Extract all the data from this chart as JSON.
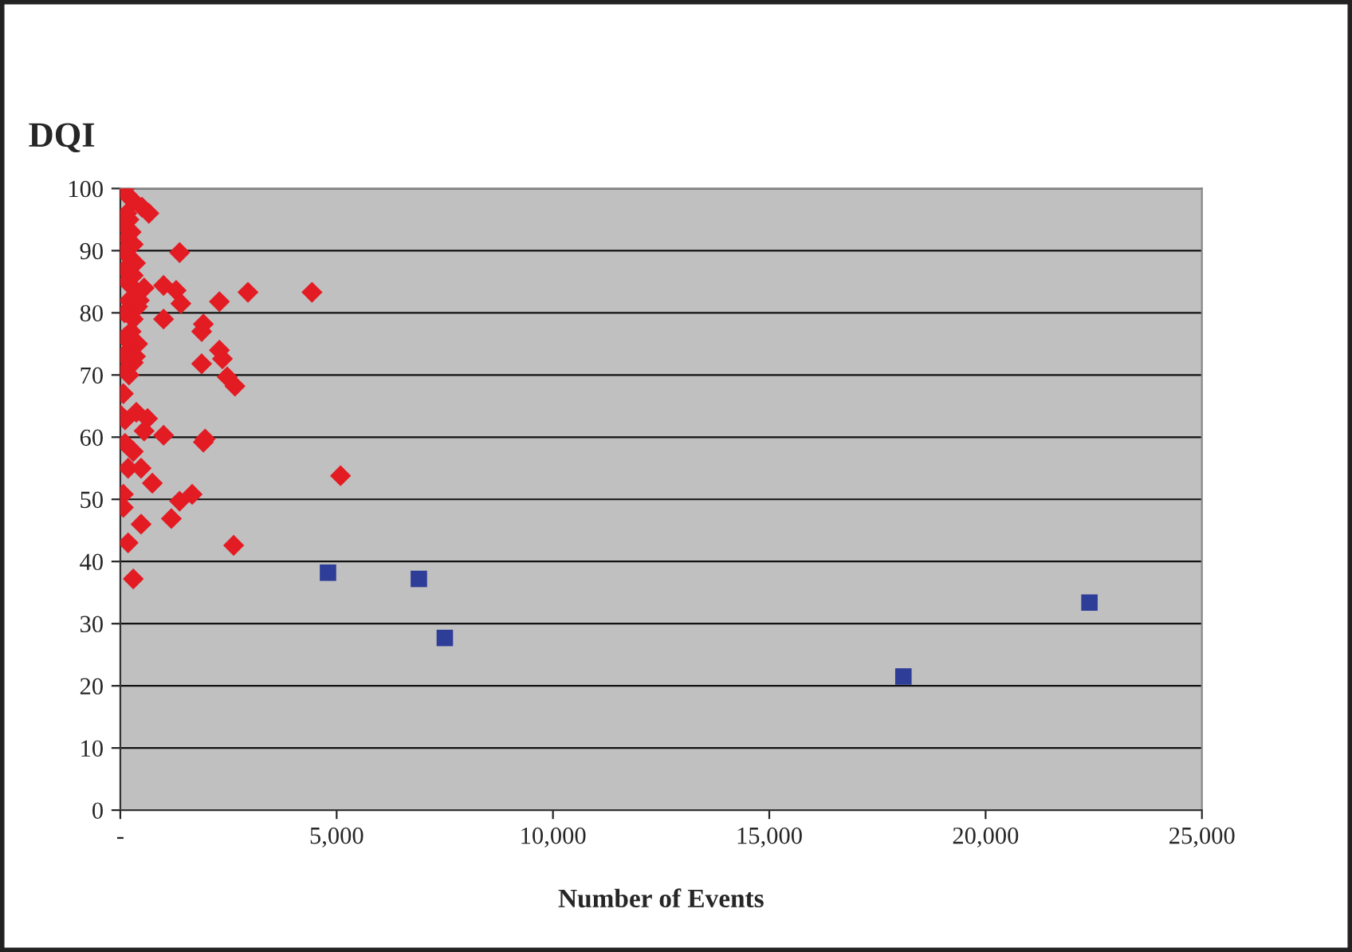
{
  "chart_data": {
    "type": "scatter",
    "ylabel": "DQI",
    "xlabel": "Number of Events",
    "xlim": [
      0,
      25000
    ],
    "ylim": [
      0,
      100
    ],
    "xticks": [
      {
        "value": 0,
        "label": "-"
      },
      {
        "value": 5000,
        "label": "5,000"
      },
      {
        "value": 10000,
        "label": "10,000"
      },
      {
        "value": 15000,
        "label": "15,000"
      },
      {
        "value": 20000,
        "label": "20,000"
      },
      {
        "value": 25000,
        "label": "25,000"
      }
    ],
    "yticks": [
      0,
      10,
      20,
      30,
      40,
      50,
      60,
      70,
      80,
      90,
      100
    ],
    "grid": "y",
    "legend": false,
    "series": [
      {
        "color": "#e31b23",
        "marker": "diamond",
        "x": [
          100,
          150,
          300,
          500,
          660,
          200,
          100,
          250,
          150,
          300,
          100,
          200,
          350,
          100,
          150,
          300,
          200,
          400,
          100,
          300,
          250,
          100,
          200,
          100,
          300,
          150,
          200,
          400,
          300,
          150,
          350,
          1370,
          1000,
          1290,
          1400,
          2290,
          2950,
          4430,
          550,
          440,
          1000,
          1920,
          1880,
          2290,
          2360,
          1880,
          2470,
          2650,
          70,
          0,
          110,
          370,
          630,
          550,
          1000,
          1920,
          1960,
          110,
          300,
          180,
          480,
          740,
          5090,
          70,
          70,
          1370,
          1660,
          1180,
          480,
          180,
          2620,
          300
        ],
        "values": [
          100,
          99,
          98,
          97,
          96,
          95,
          94,
          93,
          92,
          91,
          90,
          89,
          88,
          87,
          85,
          84,
          82,
          81,
          80,
          79,
          77,
          76,
          74,
          73,
          72,
          71,
          70,
          75,
          86,
          96,
          73,
          89.7,
          84.4,
          83.6,
          81.5,
          81.8,
          83.3,
          83.3,
          84,
          82,
          79,
          78.2,
          77,
          74,
          72.6,
          71.8,
          69.7,
          68.2,
          67,
          63.6,
          62.8,
          64,
          63,
          61,
          60.3,
          59.2,
          59.7,
          59,
          57.7,
          55,
          55,
          52.6,
          53.8,
          50.8,
          48.7,
          49.7,
          50.8,
          46.9,
          46,
          43,
          42.6,
          37.2
        ]
      },
      {
        "color": "#2e3d98",
        "marker": "square",
        "x": [
          4800,
          6900,
          7500,
          18100,
          22400
        ],
        "values": [
          38.2,
          37.2,
          27.7,
          21.5,
          33.4
        ]
      }
    ]
  }
}
